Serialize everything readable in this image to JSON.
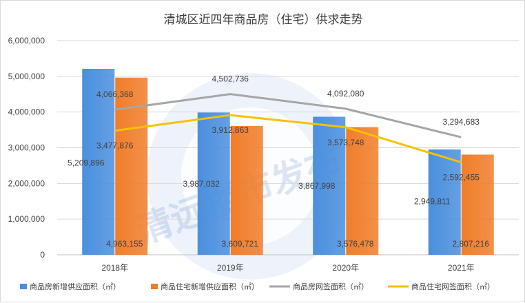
{
  "chart_data": {
    "type": "bar",
    "title": "清城区近四年商品房（住宅）供求走势",
    "categories": [
      "2018年",
      "2019年",
      "2020年",
      "2021年"
    ],
    "yticks": [
      "0",
      "1,000,000",
      "2,000,000",
      "3,000,000",
      "4,000,000",
      "5,000,000",
      "6,000,000"
    ],
    "ylim": [
      0,
      6000000
    ],
    "grid": true,
    "legend_position": "bottom",
    "series": [
      {
        "name": "商品房新增供应面积（㎡）",
        "type": "bar",
        "color": "#4a8fde",
        "values": [
          5209896,
          3987032,
          3867998,
          2949811
        ],
        "labels": [
          "5,209,896",
          "3,987,032",
          "3,867,998",
          "2,949,811"
        ]
      },
      {
        "name": "商品住宅新增供应面积（㎡）",
        "type": "bar",
        "color": "#f07d2a",
        "values": [
          4963155,
          3609721,
          3576478,
          2807216
        ],
        "labels": [
          "4,963,155",
          "3,609,721",
          "3,576,478",
          "2,807,216"
        ]
      },
      {
        "name": "商品房网签面积（㎡）",
        "type": "line",
        "color": "#a6a6a6",
        "values": [
          4066368,
          4502736,
          4092080,
          3294683
        ],
        "labels": [
          "4,066,368",
          "4,502,736",
          "4,092,080",
          "3,294,683"
        ]
      },
      {
        "name": "商品住宅网签面积（㎡）",
        "type": "line",
        "color": "#f5c200",
        "values": [
          3477876,
          3912863,
          3573748,
          2592455
        ],
        "labels": [
          "3,477,876",
          "3,912,863",
          "3,573,748",
          "2,592,455"
        ]
      }
    ],
    "watermark": "清远楼市发布"
  }
}
